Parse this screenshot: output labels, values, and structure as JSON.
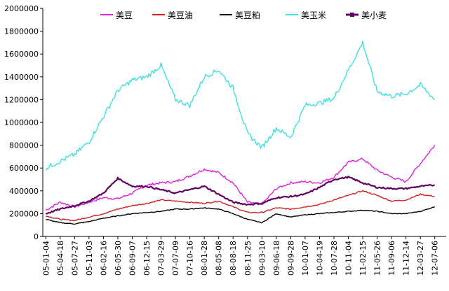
{
  "chart_data": {
    "type": "line",
    "ylim": [
      0,
      2000000
    ],
    "yticks": [
      0,
      200000,
      400000,
      600000,
      800000,
      1000000,
      1200000,
      1400000,
      1600000,
      1800000,
      2000000
    ],
    "ytick_labels": [
      "0",
      "200000",
      "400000",
      "600000",
      "800000",
      "1000000",
      "1200000",
      "1400000",
      "1600000",
      "1800000",
      "2000000"
    ],
    "x": [
      "05-01-04",
      "05-04-18",
      "05-07-27",
      "05-11-03",
      "06-02-16",
      "06-05-30",
      "06-09-07",
      "06-12-15",
      "07-03-29",
      "07-07-09",
      "07-10-16",
      "08-01-28",
      "08-05-08",
      "08-08-18",
      "08-11-25",
      "09-03-10",
      "09-06-18",
      "09-09-28",
      "10-01-07",
      "10-04-19",
      "10-07-28",
      "10-11-04",
      "11-02-15",
      "11-05-26",
      "11-09-06",
      "11-12-14",
      "12-03-27",
      "12-07-06"
    ],
    "grid": false,
    "legend_position": "top",
    "series": [
      {
        "name": "美豆",
        "color": "#e020e0",
        "values": [
          230000,
          300000,
          260000,
          300000,
          340000,
          330000,
          380000,
          450000,
          470000,
          480000,
          530000,
          590000,
          560000,
          470000,
          300000,
          280000,
          420000,
          470000,
          480000,
          470000,
          520000,
          650000,
          680000,
          580000,
          520000,
          480000,
          640000,
          800000
        ]
      },
      {
        "name": "美豆油",
        "color": "#d02020",
        "values": [
          180000,
          150000,
          140000,
          170000,
          200000,
          240000,
          270000,
          290000,
          320000,
          310000,
          300000,
          290000,
          310000,
          260000,
          210000,
          210000,
          250000,
          240000,
          260000,
          280000,
          320000,
          360000,
          400000,
          360000,
          310000,
          320000,
          370000,
          350000
        ]
      },
      {
        "name": "美豆粕",
        "color": "#000000",
        "values": [
          150000,
          120000,
          110000,
          130000,
          160000,
          180000,
          200000,
          210000,
          220000,
          240000,
          240000,
          250000,
          240000,
          200000,
          150000,
          120000,
          200000,
          170000,
          190000,
          200000,
          210000,
          220000,
          230000,
          220000,
          200000,
          200000,
          220000,
          260000
        ]
      },
      {
        "name": "美玉米",
        "color": "#40e0e0",
        "values": [
          600000,
          660000,
          720000,
          830000,
          1050000,
          1280000,
          1370000,
          1400000,
          1500000,
          1200000,
          1150000,
          1400000,
          1460000,
          1300000,
          900000,
          780000,
          950000,
          870000,
          1150000,
          1170000,
          1210000,
          1460000,
          1700000,
          1270000,
          1230000,
          1250000,
          1330000,
          1200000
        ]
      },
      {
        "name": "美小麦",
        "color": "#600060",
        "values": [
          200000,
          240000,
          270000,
          310000,
          380000,
          510000,
          440000,
          440000,
          410000,
          380000,
          410000,
          440000,
          370000,
          300000,
          280000,
          290000,
          340000,
          350000,
          370000,
          430000,
          500000,
          520000,
          470000,
          430000,
          420000,
          420000,
          440000,
          450000
        ]
      }
    ]
  }
}
